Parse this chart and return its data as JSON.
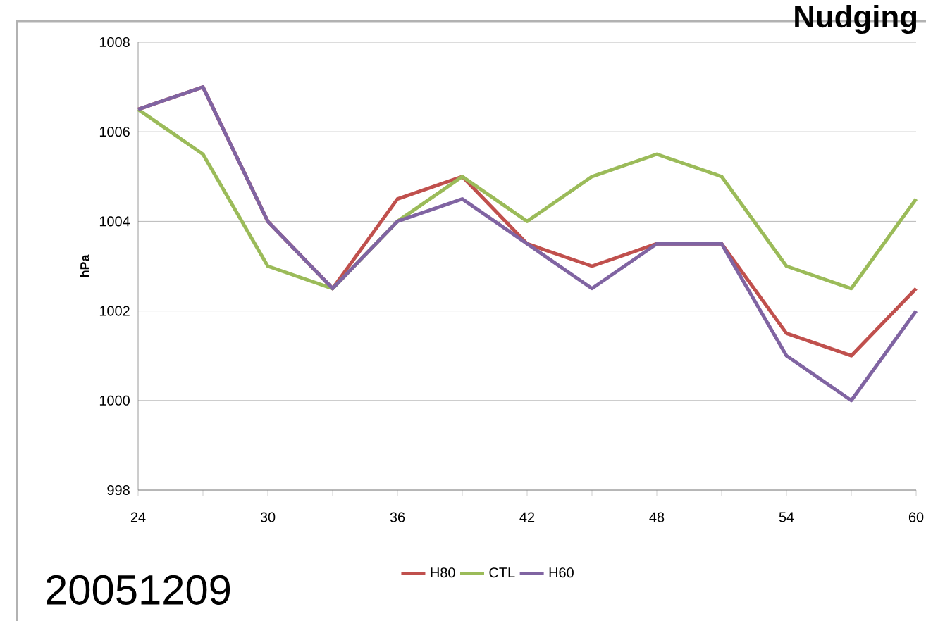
{
  "chart_data": {
    "type": "line",
    "title": "Nudging",
    "ylabel": "hPa",
    "annotations": [
      "20051209"
    ],
    "x": [
      24,
      27,
      30,
      33,
      36,
      39,
      42,
      45,
      48,
      51,
      54,
      57,
      60
    ],
    "series": [
      {
        "name": "H80",
        "color": "#c0504d",
        "values": [
          1006.5,
          1007,
          1004,
          1002.5,
          1004.5,
          1005,
          1003.5,
          1003,
          1003.5,
          1003.5,
          1001.5,
          1001,
          1002.5
        ]
      },
      {
        "name": "CTL",
        "color": "#9bbb59",
        "values": [
          1006.5,
          1005.5,
          1003,
          1002.5,
          1004,
          1005,
          1004,
          1005,
          1005.5,
          1005,
          1003,
          1002.5,
          1004.5
        ]
      },
      {
        "name": "H60",
        "color": "#8064a2",
        "values": [
          1006.5,
          1007,
          1004,
          1002.5,
          1004,
          1004.5,
          1003.5,
          1002.5,
          1003.5,
          1003.5,
          1001,
          1000,
          1002
        ]
      }
    ],
    "xlim": [
      24,
      60
    ],
    "xticks": [
      24,
      {
        "value": 27,
        "label": null
      },
      30,
      {
        "value": 33,
        "label": null
      },
      36,
      {
        "value": 39,
        "label": null
      },
      42,
      {
        "value": 45,
        "label": null
      },
      48,
      {
        "value": 51,
        "label": null
      },
      54,
      {
        "value": 57,
        "label": null
      },
      60
    ],
    "ylim": [
      998,
      1008
    ],
    "yticks": [
      998,
      1000,
      1002,
      1004,
      1006,
      1008
    ],
    "grid": "y",
    "legend": "bottom",
    "marker": "none",
    "line_style": "solid"
  }
}
